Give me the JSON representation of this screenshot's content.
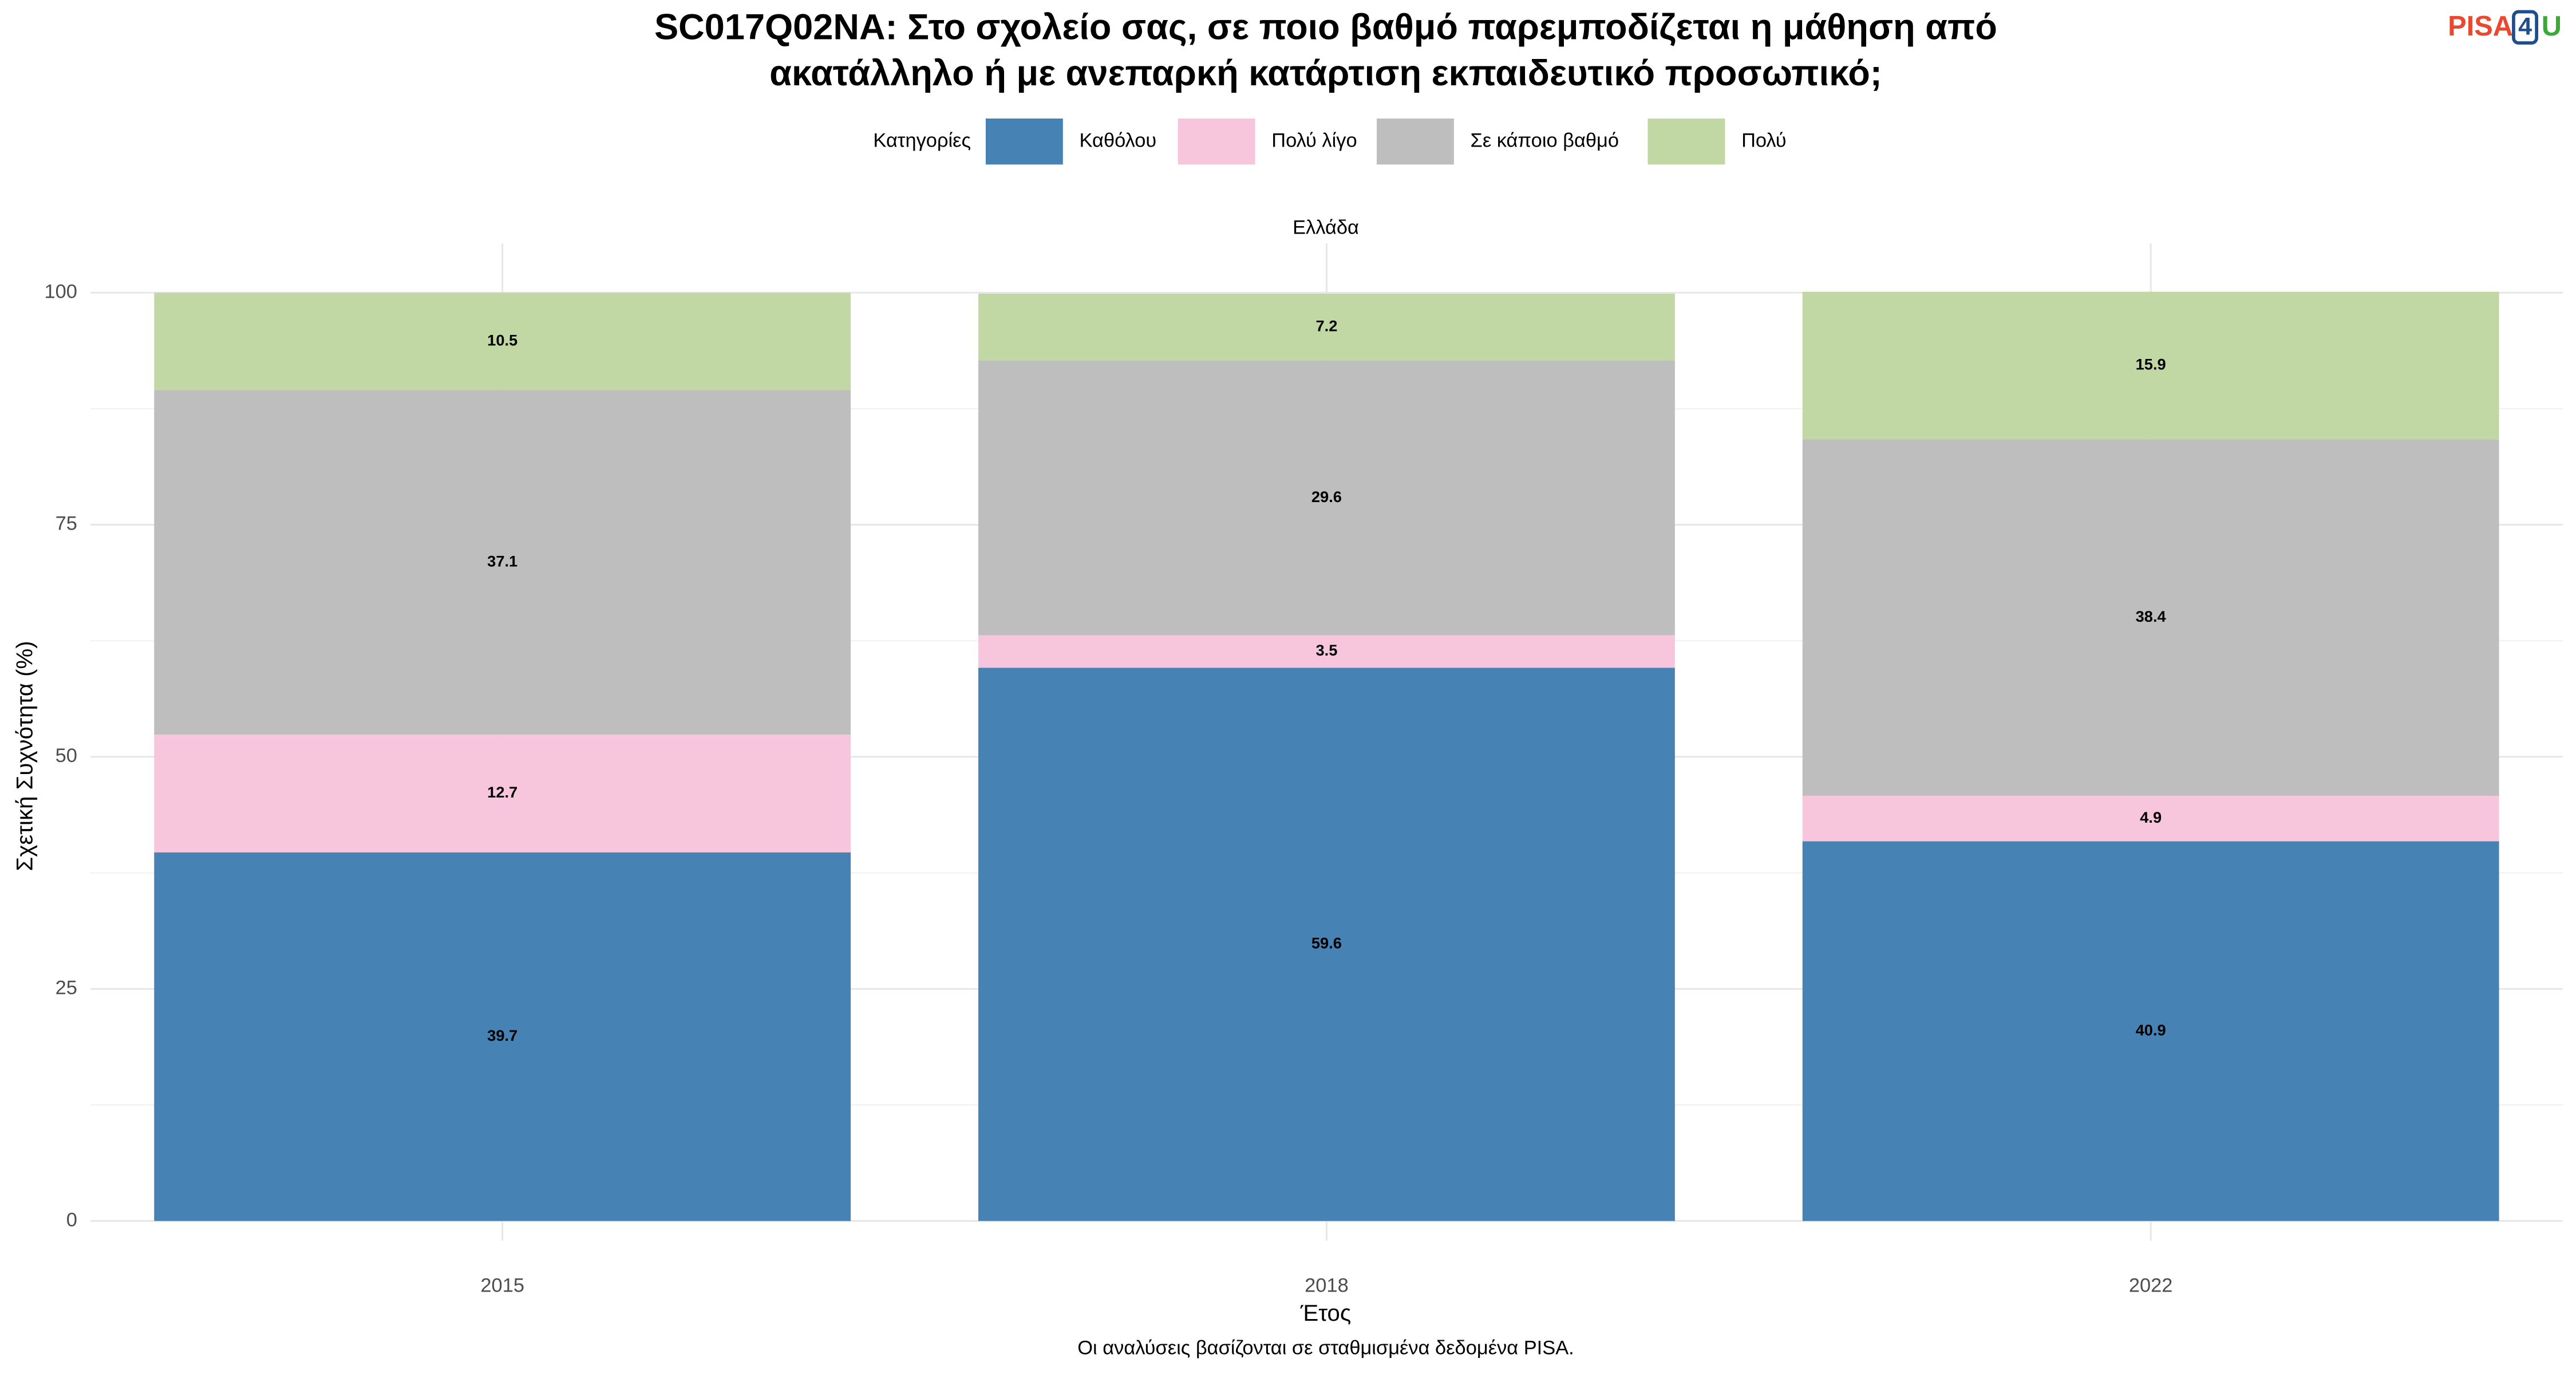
{
  "chart_data": {
    "type": "stacked_bar",
    "title": [
      "SC017Q02NA: Στο σχολείο σας, σε ποιο βαθμό παρεμποδίζεται η μάθηση από",
      "ακατάλληλο ή με ανεπαρκή κατάρτιση εκπαιδευτικό προσωπικό;"
    ],
    "legend_title": "Κατηγορίες",
    "facet": "Ελλάδα",
    "xlabel": "Έτος",
    "ylabel": "Σχετική Συχνότητα (%)",
    "caption": "Οι αναλύσεις βασίζονται σε σταθμισμένα δεδομένα PISA.",
    "logo": [
      "PISA",
      "4",
      "U"
    ],
    "categories": [
      "2015",
      "2018",
      "2022"
    ],
    "series": [
      {
        "name": "Καθόλου",
        "color": "#4682b4",
        "values": [
          39.7,
          59.6,
          40.9
        ]
      },
      {
        "name": "Πολύ λίγο",
        "color": "#f7c6dc",
        "values": [
          12.7,
          3.5,
          4.9
        ]
      },
      {
        "name": "Σε κάποιο βαθμό",
        "color": "#bebebe",
        "values": [
          37.1,
          29.6,
          38.4
        ]
      },
      {
        "name": "Πολύ",
        "color": "#c2d8a4",
        "values": [
          10.5,
          7.2,
          15.9
        ]
      }
    ],
    "ylim": [
      0,
      100
    ],
    "yticks": [
      0,
      25,
      50,
      75,
      100
    ],
    "grid": true,
    "legend_position": "top"
  }
}
